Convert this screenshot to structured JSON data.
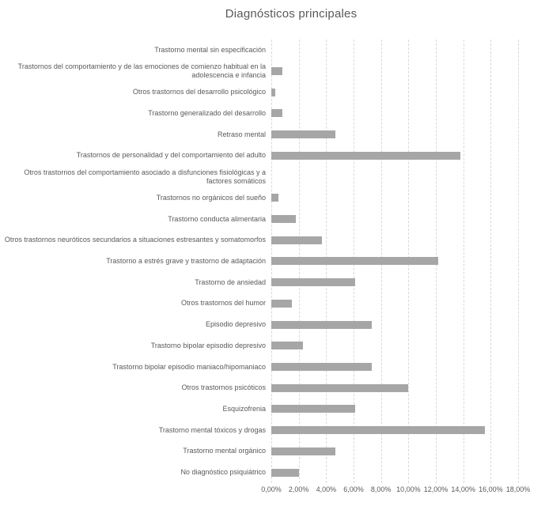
{
  "title": "Diagnósticos principales",
  "chart_data": {
    "type": "bar",
    "orientation": "horizontal",
    "title": "Diagnósticos principales",
    "categories": [
      "Trastorno mental sin especificación",
      "Trastornos del comportamiento y de las emociones de comienzo habitual en la adolescencia e infancia",
      "Otros trastornos del desarrollo psicológico",
      "Trastorno generalizado del desarrollo",
      "Retraso mental",
      "Trastornos de personalidad y del comportamiento del adulto",
      "Otros trastornos del comportamiento asociado a disfunciones fisiológicas y a factores somáticos",
      "Trastornos no orgánicos del sueño",
      "Trastorno conducta alimentaria",
      "Otros trastornos neuróticos secundarios a situaciones estresantes y somatomorfos",
      "Trastorno a estrés grave y trastorno de adaptación",
      "Trastorno de ansiedad",
      "Otros trastornos del humor",
      "Episodio depresivo",
      "Trastorno bipolar episodio depresivo",
      "Trastorno bipolar episodio maniaco/hipomaniaco",
      "Otros trastornos psicóticos",
      "Esquizofrenia",
      "Trastorno mental tóxicos y drogas",
      "Trastorno mental orgánico",
      "No diagnóstico psiquiátrico"
    ],
    "values": [
      0,
      0.8,
      0.3,
      0.8,
      4.7,
      13.8,
      0,
      0.5,
      1.8,
      3.7,
      12.2,
      6.1,
      1.5,
      7.3,
      2.3,
      7.3,
      10.0,
      6.1,
      15.6,
      4.7,
      2.0
    ],
    "value_unit": "%",
    "x_ticks": [
      "0,00%",
      "2,00%",
      "4,00%",
      "6,00%",
      "8,00%",
      "10,00%",
      "12,00%",
      "14,00%",
      "16,00%",
      "18,00%"
    ],
    "xlim": [
      0,
      18
    ],
    "xlabel": "",
    "ylabel": "",
    "legend": "none",
    "grid": "vertical-dashed",
    "bar_color": "#a6a6a6",
    "gridline_color": "#d9d9d9",
    "text_color": "#595959",
    "background_color": "#ffffff"
  }
}
